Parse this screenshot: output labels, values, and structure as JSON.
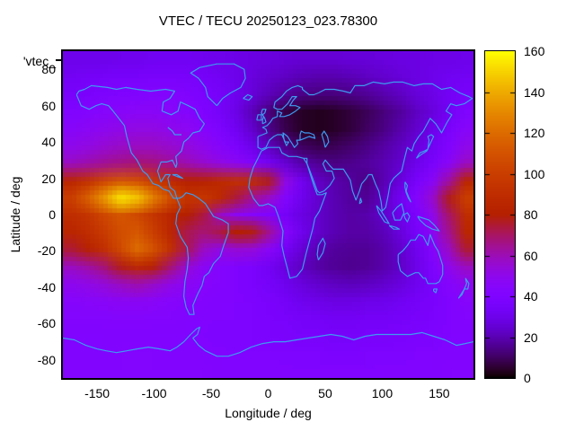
{
  "window": {
    "background": "#ffffff"
  },
  "key": {
    "label": "'vtec_"
  },
  "chart_data": {
    "type": "heatmap",
    "title": "VTEC / TECU 20250123_023.78300",
    "xlabel": "Longitude / deg",
    "ylabel": "Latitude / deg",
    "x_range": [
      -180,
      180
    ],
    "y_range": [
      -90,
      90
    ],
    "x_ticks": [
      -150,
      -100,
      -50,
      0,
      50,
      100,
      150
    ],
    "y_ticks": [
      80,
      60,
      40,
      20,
      0,
      -20,
      -40,
      -60,
      -80
    ],
    "colorbar": {
      "min": 0,
      "max": 160,
      "ticks": [
        0,
        20,
        40,
        60,
        80,
        100,
        120,
        140,
        160
      ],
      "palette": "gnuplot default pm3d (black-purple-violet-red-orange-yellow)"
    },
    "units": "TECU",
    "coastline_color": "#3d9bf0",
    "grid": {
      "lon_start": -180,
      "lon_step": 15,
      "lat_start": 90,
      "lat_step": -10,
      "values_tecu": [
        [
          30,
          30,
          30,
          31,
          31,
          32,
          32,
          32,
          31,
          30,
          29,
          28,
          27,
          26,
          25,
          25,
          25,
          26,
          26,
          27,
          28,
          28,
          29,
          29,
          30
        ],
        [
          33,
          34,
          35,
          36,
          36,
          37,
          37,
          36,
          35,
          33,
          30,
          27,
          24,
          22,
          20,
          19,
          19,
          20,
          22,
          24,
          26,
          28,
          30,
          32,
          33
        ],
        [
          36,
          37,
          39,
          40,
          41,
          42,
          42,
          41,
          38,
          35,
          31,
          26,
          21,
          17,
          14,
          13,
          13,
          14,
          16,
          19,
          22,
          26,
          29,
          33,
          36
        ],
        [
          40,
          42,
          44,
          45,
          46,
          46,
          45,
          43,
          40,
          35,
          29,
          21,
          13,
          7,
          4,
          3,
          4,
          6,
          9,
          13,
          17,
          22,
          27,
          33,
          40
        ],
        [
          45,
          47,
          49,
          51,
          52,
          52,
          50,
          48,
          44,
          39,
          32,
          24,
          15,
          8,
          4,
          3,
          4,
          6,
          10,
          14,
          19,
          24,
          30,
          37,
          45
        ],
        [
          50,
          52,
          55,
          57,
          58,
          58,
          56,
          53,
          49,
          44,
          38,
          30,
          22,
          15,
          10,
          8,
          9,
          11,
          14,
          18,
          22,
          27,
          33,
          41,
          50
        ],
        [
          58,
          61,
          64,
          66,
          68,
          67,
          64,
          60,
          56,
          52,
          48,
          42,
          34,
          26,
          19,
          16,
          14,
          15,
          17,
          20,
          24,
          30,
          37,
          46,
          58
        ],
        [
          85,
          93,
          104,
          112,
          108,
          98,
          88,
          82,
          82,
          88,
          92,
          90,
          78,
          52,
          33,
          23,
          19,
          17,
          14,
          20,
          27,
          36,
          46,
          63,
          85
        ],
        [
          100,
          115,
          135,
          155,
          147,
          127,
          107,
          94,
          96,
          88,
          74,
          64,
          56,
          42,
          31,
          24,
          20,
          17,
          16,
          23,
          32,
          42,
          56,
          78,
          100
        ],
        [
          90,
          95,
          105,
          112,
          105,
          95,
          85,
          80,
          74,
          58,
          48,
          44,
          40,
          34,
          28,
          24,
          20,
          18,
          19,
          24,
          30,
          38,
          50,
          70,
          90
        ],
        [
          85,
          90,
          98,
          108,
          112,
          100,
          85,
          72,
          68,
          72,
          80,
          78,
          64,
          44,
          31,
          24,
          20,
          18,
          18,
          21,
          27,
          35,
          47,
          65,
          85
        ],
        [
          75,
          82,
          92,
          106,
          120,
          110,
          92,
          72,
          58,
          52,
          55,
          54,
          46,
          34,
          26,
          20,
          17,
          16,
          16,
          19,
          24,
          31,
          43,
          58,
          75
        ],
        [
          58,
          62,
          68,
          78,
          86,
          82,
          68,
          55,
          47,
          42,
          40,
          38,
          33,
          27,
          22,
          18,
          16,
          15,
          16,
          19,
          23,
          29,
          39,
          50,
          58
        ],
        [
          49,
          51,
          54,
          58,
          61,
          57,
          51,
          47,
          44,
          42,
          40,
          38,
          35,
          31,
          27,
          24,
          22,
          21,
          22,
          24,
          27,
          31,
          37,
          43,
          49
        ],
        [
          44,
          45,
          46,
          47,
          47,
          46,
          44,
          43,
          42,
          41,
          40,
          39,
          37,
          34,
          31,
          29,
          28,
          28,
          29,
          30,
          32,
          34,
          37,
          40,
          44
        ],
        [
          42,
          42,
          42,
          43,
          43,
          42,
          42,
          41,
          41,
          40,
          40,
          39,
          38,
          36,
          35,
          34,
          33,
          33,
          34,
          34,
          35,
          36,
          38,
          40,
          42
        ],
        [
          40,
          40,
          41,
          41,
          41,
          41,
          40,
          40,
          40,
          39,
          39,
          39,
          38,
          37,
          36,
          36,
          35,
          35,
          36,
          36,
          37,
          38,
          39,
          40,
          40
        ],
        [
          41,
          41,
          41,
          42,
          42,
          42,
          41,
          41,
          41,
          41,
          40,
          40,
          40,
          39,
          39,
          39,
          38,
          38,
          39,
          39,
          39,
          40,
          40,
          41,
          41
        ],
        [
          42,
          42,
          42,
          42,
          42,
          42,
          42,
          42,
          42,
          41,
          41,
          41,
          41,
          41,
          40,
          40,
          40,
          40,
          40,
          41,
          41,
          41,
          41,
          42,
          42
        ]
      ]
    }
  }
}
